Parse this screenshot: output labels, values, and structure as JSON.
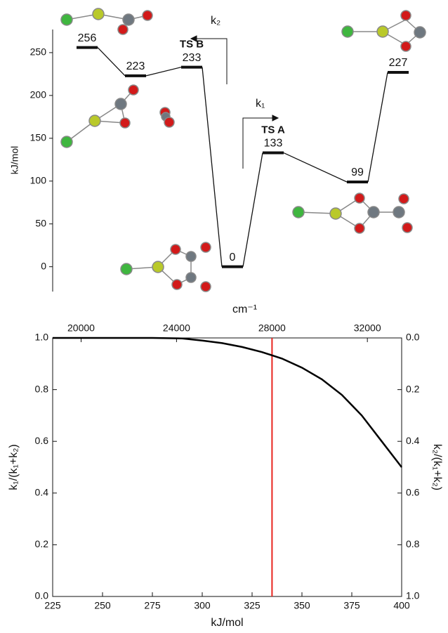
{
  "chart_data": [
    {
      "type": "levels",
      "ylabel": "kJ/mol",
      "categories": [
        null,
        null,
        "TS B",
        null,
        "TS A",
        null,
        null
      ],
      "values": [
        256,
        223,
        233,
        0,
        133,
        99,
        227
      ],
      "color": "#111111",
      "ylim": [
        -29,
        277
      ],
      "yticks": [
        0,
        50,
        100,
        150,
        200,
        250
      ],
      "annotations": [
        "k₂",
        "k₁"
      ]
    },
    {
      "type": "line",
      "xlabel": "kJ/mol",
      "x2label": "cm⁻¹",
      "ylabel": "k₁/(k₁+k₂)",
      "y2label": "k₂/(k₁+k₂)",
      "x": [
        225,
        250,
        275,
        290,
        300,
        310,
        320,
        330,
        340,
        350,
        360,
        370,
        380,
        390,
        400
      ],
      "values": [
        1,
        1,
        1,
        0.998,
        0.99,
        0.98,
        0.965,
        0.945,
        0.92,
        0.885,
        0.84,
        0.78,
        0.7,
        0.6,
        0.5
      ],
      "color": "#000000",
      "xlim": [
        225,
        400
      ],
      "xticks": [
        225,
        250,
        275,
        300,
        325,
        350,
        375,
        400
      ],
      "x2lim": [
        18808,
        33437
      ],
      "x2ticks": [
        20000,
        24000,
        28000,
        32000
      ],
      "ylim": [
        0,
        1
      ],
      "yticks": [
        {
          "value": 0,
          "label": "0.0"
        },
        0.2,
        0.4,
        0.6,
        0.8,
        {
          "value": 1,
          "label": "1.0"
        }
      ],
      "y2lim": [
        1,
        0
      ],
      "y2ticks": [
        {
          "value": 0,
          "label": "0.0"
        },
        0.2,
        0.4,
        0.6,
        0.8,
        {
          "value": 1,
          "label": "1.0"
        }
      ],
      "vline": 335,
      "vline_color": "#e8251f"
    }
  ]
}
